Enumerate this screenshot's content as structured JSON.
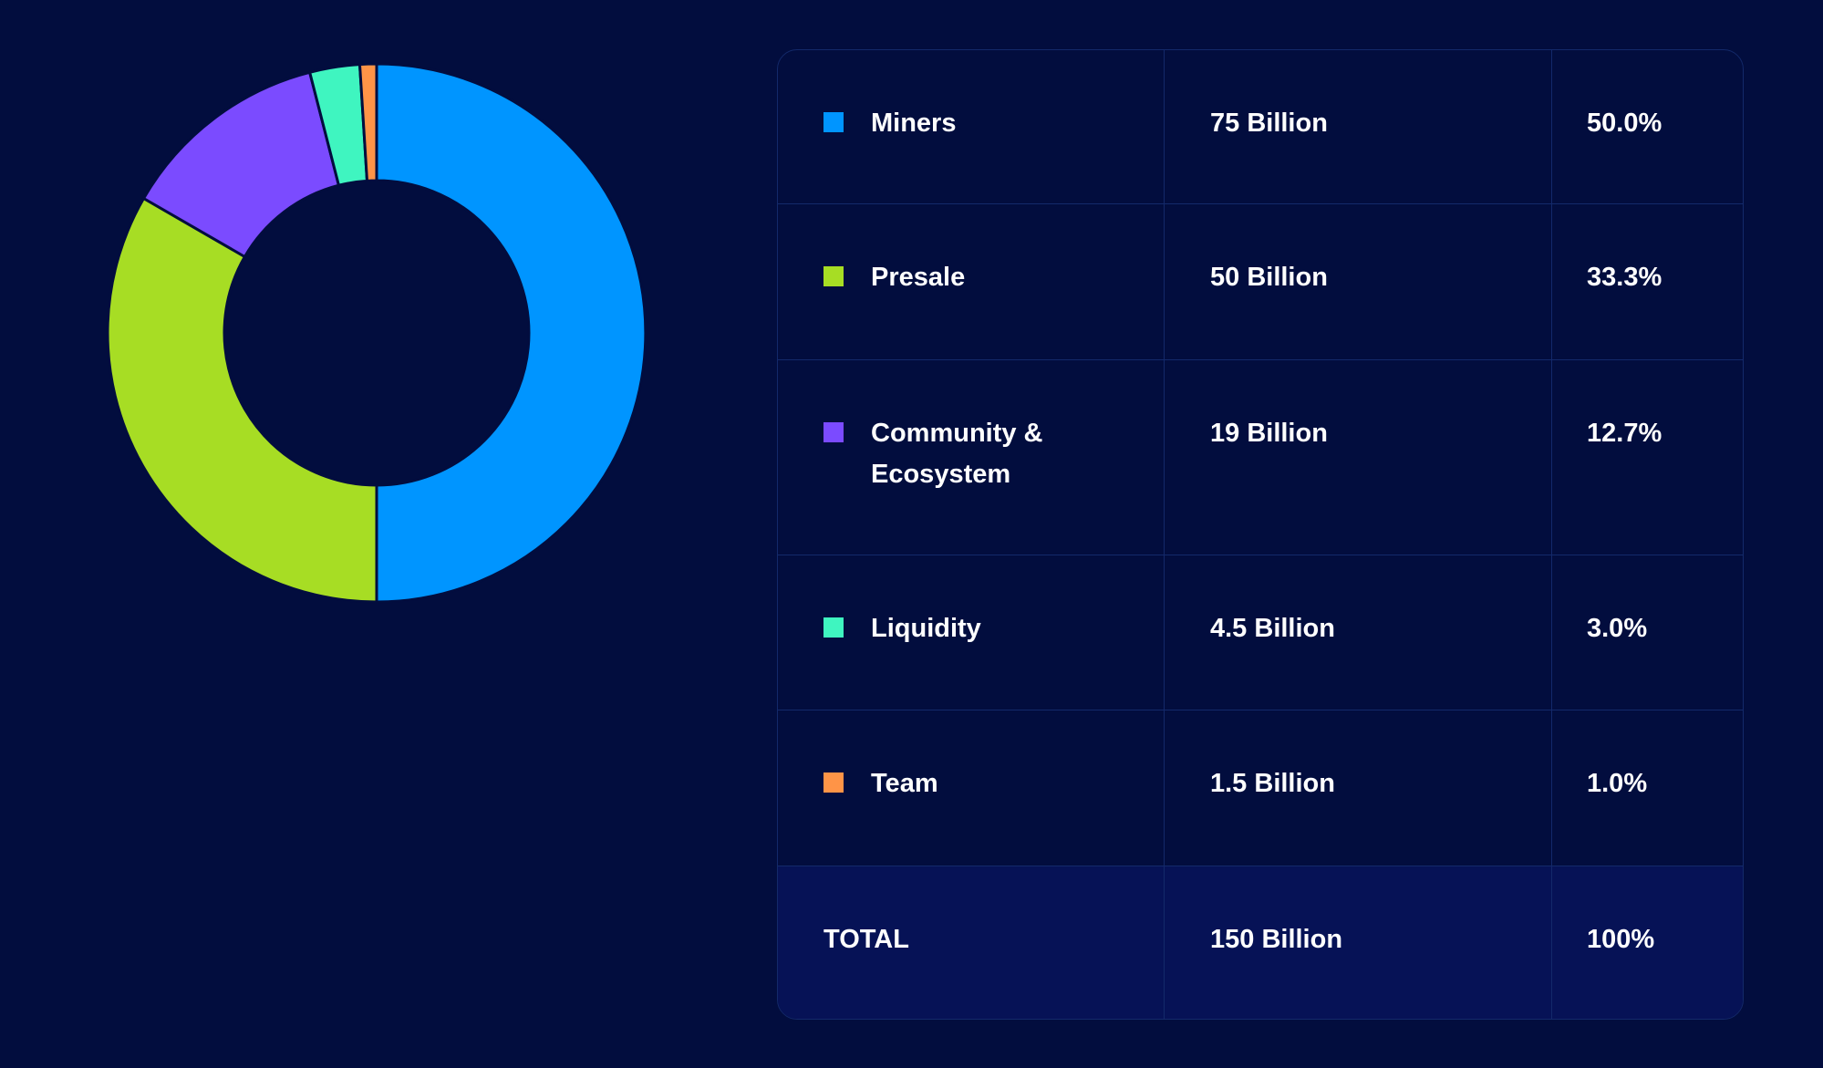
{
  "chart_data": {
    "type": "pie",
    "style": "donut",
    "categories": [
      "Miners",
      "Presale",
      "Community & Ecosystem",
      "Liquidity",
      "Team"
    ],
    "values": [
      75,
      50,
      19,
      4.5,
      1.5
    ],
    "unit": "Billion",
    "percentages": [
      "50.0%",
      "33.3%",
      "12.7%",
      "3.0%",
      "1.0%"
    ],
    "colors": [
      "#0095ff",
      "#a7dd24",
      "#7b4bff",
      "#3ff5c0",
      "#ff9447"
    ],
    "start": "top",
    "direction": "clockwise"
  },
  "table": {
    "rows": [
      {
        "label": "Miners",
        "amount": "75 Billion",
        "percent": "50.0%"
      },
      {
        "label": "Presale",
        "amount": "50 Billion",
        "percent": "33.3%"
      },
      {
        "label": "Community & Ecosystem",
        "amount": "19 Billion",
        "percent": "12.7%"
      },
      {
        "label": "Liquidity",
        "amount": "4.5 Billion",
        "percent": "3.0%"
      },
      {
        "label": "Team",
        "amount": "1.5 Billion",
        "percent": "1.0%"
      }
    ],
    "total": {
      "label": "TOTAL",
      "amount": "150 Billion",
      "percent": "100%"
    }
  }
}
